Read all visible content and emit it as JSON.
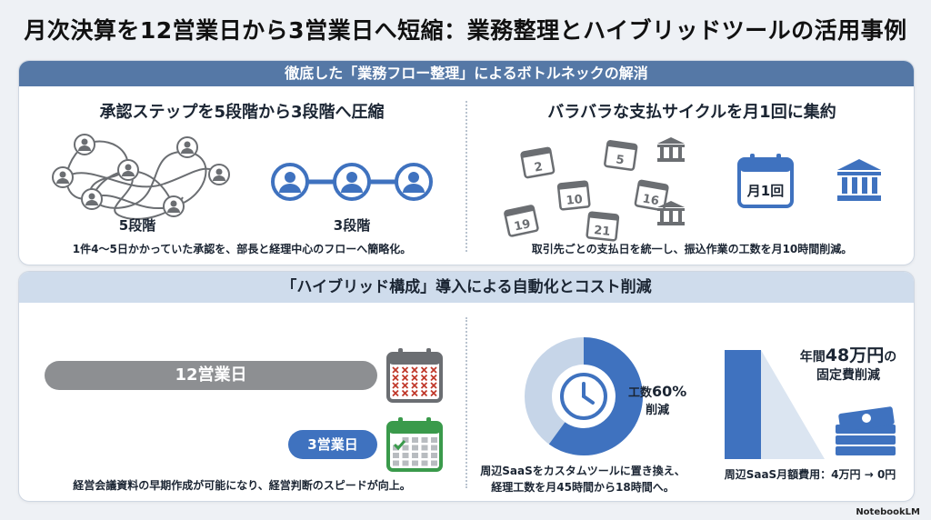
{
  "title": "月次決算を12営業日から3営業日へ短縮：業務整理とハイブリッドツールの活用事例",
  "section1": {
    "header": "徹底した「業務フロー整理」によるボトルネックの解消",
    "left": {
      "heading": "承認ステップを5段階から3段階へ圧縮",
      "label_before": "5段階",
      "label_after": "3段階",
      "caption": "1件4～5日かかっていた承認を、部長と経理中心のフローへ簡略化。"
    },
    "right": {
      "heading": "バラバラな支払サイクルを月1回に集約",
      "calendar_dates": [
        "2",
        "5",
        "10",
        "16",
        "19",
        "21"
      ],
      "monthly_label": "月1回",
      "caption": "取引先ごとの支払日を統一し、振込作業の工数を月10時間削減。"
    }
  },
  "section2": {
    "header": "「ハイブリッド構成」導入による自動化とコスト削減",
    "left": {
      "before_label": "12営業日",
      "after_label": "3営業日",
      "caption": "経営会議資料の早期作成が可能になり、経営判断のスピードが向上。"
    },
    "middle": {
      "pct_prefix": "工数",
      "pct_value": "60%",
      "pct_suffix": "削減",
      "reduction_fraction": 0.6,
      "caption_line1": "周辺SaaSをカスタムツールに置き換え、",
      "caption_line2": "経理工数を月45時間から18時間へ。"
    },
    "right": {
      "annual_prefix": "年間",
      "annual_value": "48万円",
      "annual_suffix": "の",
      "annual_line2": "固定費削減",
      "caption": "周辺SaaS月額費用：4万円 → 0円"
    }
  },
  "brand": "NotebookLM",
  "colors": {
    "accent": "#3f72bf",
    "header_dark": "#5578a6",
    "header_light": "#cfdcec",
    "gray": "#8d8f92",
    "red_x": "#c0392b",
    "green": "#3a9a4b"
  }
}
